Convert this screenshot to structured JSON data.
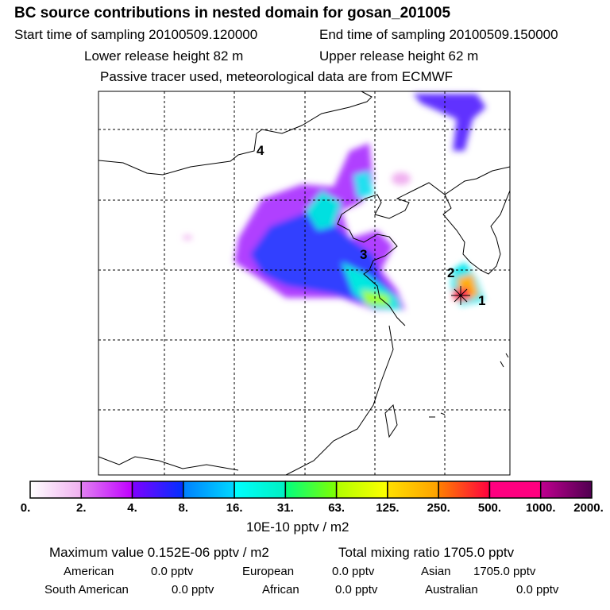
{
  "header": {
    "title": "BC  source contributions in nested domain for gosan_201005",
    "start": "Start time of sampling 20100509.120000",
    "end": "End time of sampling 20100509.150000",
    "lower": "Lower release height   82 m",
    "upper": "Upper release height   62 m",
    "note": "Passive tracer used, meteorological data are from ECMWF"
  },
  "map": {
    "labels": [
      "1",
      "2",
      "3",
      "4"
    ],
    "receptor_marker": "star-icon"
  },
  "colorbar": {
    "ticks": [
      "0.",
      "2.",
      "4.",
      "8.",
      "16.",
      "31.",
      "63.",
      "125.",
      "250.",
      "500.",
      "1000.",
      "2000."
    ],
    "colors": [
      [
        "#ffffff",
        "#f0b0f0"
      ],
      [
        "#e080f0",
        "#c000ff"
      ],
      [
        "#8000ff",
        "#0030ff"
      ],
      [
        "#0080ff",
        "#00d8ff"
      ],
      [
        "#00ffff",
        "#00f0c0"
      ],
      [
        "#00ff80",
        "#80ff00"
      ],
      [
        "#b0ff00",
        "#ffff00"
      ],
      [
        "#ffe000",
        "#ffa000"
      ],
      [
        "#ff8000",
        "#ff0040"
      ],
      [
        "#ff0080",
        "#ff0080"
      ],
      [
        "#c00090",
        "#500050"
      ]
    ],
    "unit": "10E-10 pptv / m2"
  },
  "summary": {
    "max": "Maximum value  0.152E-06 pptv / m2",
    "total": "Total mixing ratio     1705.0 pptv",
    "rows": [
      [
        [
          "American",
          "0.0 pptv"
        ],
        [
          "European",
          "0.0 pptv"
        ],
        [
          "Asian",
          "1705.0 pptv"
        ]
      ],
      [
        [
          "South American",
          "0.0 pptv"
        ],
        [
          "African",
          "0.0 pptv"
        ],
        [
          "Australian",
          "0.0 pptv"
        ]
      ]
    ]
  }
}
